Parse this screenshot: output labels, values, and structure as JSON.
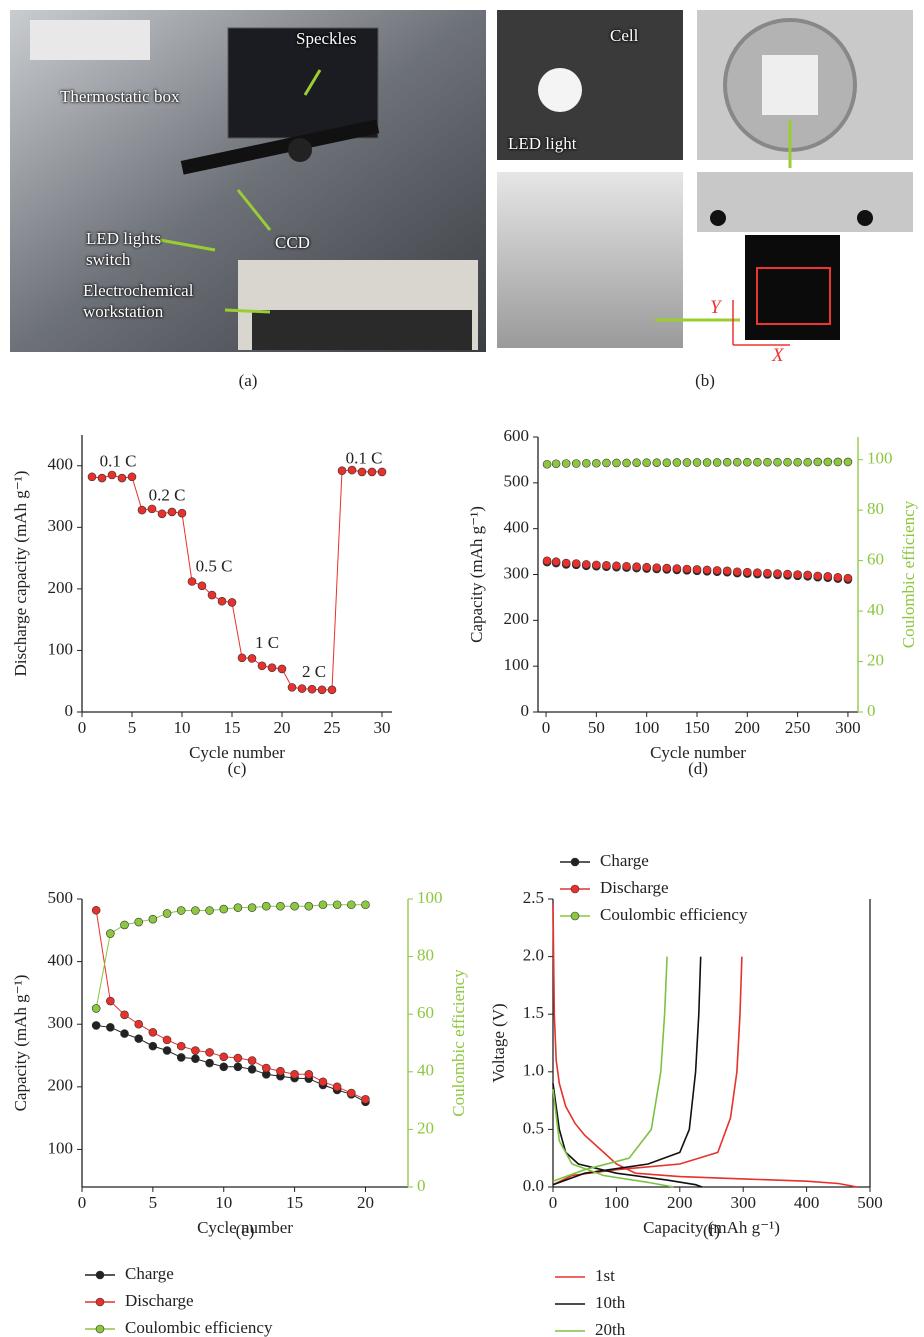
{
  "photos": [
    {
      "caption": "(a)",
      "labels": [
        "Thermostatic box",
        "Speckles",
        "LED lights switch",
        "CCD",
        "Electrochemical workstation"
      ]
    },
    {
      "caption": "(b)",
      "labels": [
        "Cell",
        "LED light",
        "Y",
        "X"
      ]
    }
  ],
  "chart_data": [
    {
      "type": "line",
      "markers": true,
      "caption": "(c)",
      "xlabel": "Cycle number",
      "ylabel": "Discharge capacity (mAh g⁻¹)",
      "x": [
        1,
        2,
        3,
        4,
        5,
        6,
        7,
        8,
        9,
        10,
        11,
        12,
        13,
        14,
        15,
        16,
        17,
        18,
        19,
        20,
        21,
        22,
        23,
        24,
        25,
        26,
        27,
        28,
        29,
        30
      ],
      "values": [
        382,
        380,
        385,
        380,
        382,
        328,
        330,
        322,
        325,
        323,
        212,
        205,
        190,
        180,
        178,
        88,
        87,
        75,
        72,
        70,
        40,
        38,
        37,
        36,
        36,
        392,
        393,
        390,
        390,
        390
      ],
      "color": "#e8302c",
      "annotations": [
        "0.1 C",
        "0.2 C",
        "0.5 C",
        "1 C",
        "2 C",
        "0.1 C"
      ],
      "xlim": [
        0,
        31
      ],
      "xticks": [
        0,
        5,
        10,
        15,
        20,
        25,
        30
      ],
      "ylim": [
        0,
        450
      ],
      "yticks": [
        0,
        100,
        200,
        300,
        400
      ]
    },
    {
      "type": "scatter",
      "caption": "(d)",
      "xlabel": "Cycle number",
      "ylabel": "Capacity (mAh g⁻¹)",
      "y2label": "Coulombic efficiency",
      "x": [
        1,
        10,
        20,
        30,
        40,
        50,
        60,
        70,
        80,
        90,
        100,
        110,
        120,
        130,
        140,
        150,
        160,
        170,
        180,
        190,
        200,
        210,
        220,
        230,
        240,
        250,
        260,
        270,
        280,
        290,
        300
      ],
      "series": [
        {
          "name": "Charge",
          "color": "#222222",
          "values": [
            327,
            325,
            322,
            321,
            319,
            318,
            317,
            316,
            315,
            314,
            313,
            312,
            311,
            310,
            309,
            308,
            307,
            306,
            305,
            303,
            302,
            301,
            300,
            299,
            298,
            297,
            296,
            294,
            293,
            291,
            289
          ]
        },
        {
          "name": "Discharge",
          "color": "#e8302c",
          "values": [
            330,
            328,
            325,
            324,
            322,
            321,
            320,
            319,
            318,
            317,
            316,
            315,
            314,
            313,
            312,
            311,
            310,
            309,
            308,
            306,
            305,
            304,
            303,
            302,
            301,
            300,
            299,
            297,
            296,
            294,
            292
          ]
        },
        {
          "name": "Coulombic efficiency",
          "color": "#8dc63f",
          "axis": "y2",
          "values": [
            98.2,
            98.4,
            98.5,
            98.5,
            98.6,
            98.6,
            98.7,
            98.7,
            98.7,
            98.8,
            98.8,
            98.8,
            98.8,
            98.9,
            98.9,
            98.9,
            98.9,
            98.9,
            99,
            99,
            99,
            99,
            99,
            99,
            99,
            99,
            99,
            99.1,
            99.1,
            99.1,
            99.1
          ]
        }
      ],
      "xlim": [
        -8,
        310
      ],
      "xticks": [
        0,
        50,
        100,
        150,
        200,
        250,
        300
      ],
      "ylim": [
        0,
        600
      ],
      "yticks": [
        0,
        100,
        200,
        300,
        400,
        500,
        600
      ],
      "y2lim": [
        0,
        109
      ],
      "y2ticks": [
        0,
        20,
        40,
        60,
        80,
        100
      ]
    },
    {
      "type": "line",
      "markers": true,
      "caption": "(e)",
      "xlabel": "Cycle number",
      "ylabel": "Capacity (mAh g⁻¹)",
      "y2label": "Coulombic efficiency",
      "x": [
        1,
        2,
        3,
        4,
        5,
        6,
        7,
        8,
        9,
        10,
        11,
        12,
        13,
        14,
        15,
        16,
        17,
        18,
        19,
        20
      ],
      "series": [
        {
          "name": "Charge",
          "color": "#222222",
          "values": [
            298,
            295,
            285,
            277,
            265,
            258,
            247,
            245,
            238,
            232,
            232,
            228,
            220,
            217,
            214,
            213,
            203,
            195,
            188,
            176
          ]
        },
        {
          "name": "Discharge",
          "color": "#e8302c",
          "values": [
            482,
            337,
            315,
            300,
            287,
            275,
            265,
            258,
            255,
            248,
            246,
            242,
            230,
            225,
            220,
            220,
            208,
            200,
            190,
            180
          ]
        },
        {
          "name": "Coulombic efficiency",
          "color": "#8dc63f",
          "axis": "y2",
          "values": [
            62,
            88,
            91,
            92,
            93,
            95,
            96,
            96,
            96,
            96.5,
            97,
            97,
            97.5,
            97.5,
            97.5,
            97.5,
            98,
            98,
            98,
            98
          ]
        }
      ],
      "xlim": [
        0,
        23
      ],
      "xticks": [
        0,
        5,
        10,
        15,
        20
      ],
      "ylim": [
        40,
        500
      ],
      "yticks": [
        100,
        200,
        300,
        400,
        500
      ],
      "y2lim": [
        0,
        100
      ],
      "y2ticks": [
        0,
        20,
        40,
        60,
        80,
        100
      ]
    },
    {
      "type": "line",
      "caption": "(f)",
      "xlabel": "Capacity (mAh g⁻¹)",
      "ylabel": "Voltage (V)",
      "series": [
        {
          "name": "1st",
          "color": "#e8302c",
          "x": [
            0,
            2,
            5,
            10,
            20,
            35,
            50,
            80,
            100,
            130,
            200,
            300,
            400,
            450,
            480,
            null,
            0,
            30,
            100,
            200,
            260,
            280,
            290,
            295,
            298
          ],
          "values": [
            2.45,
            1.5,
            1.1,
            0.9,
            0.7,
            0.55,
            0.45,
            0.3,
            0.2,
            0.12,
            0.09,
            0.07,
            0.05,
            0.03,
            0,
            null,
            0.02,
            0.1,
            0.15,
            0.2,
            0.3,
            0.6,
            1,
            1.5,
            2
          ]
        },
        {
          "name": "10th",
          "color": "#111111",
          "x": [
            0,
            10,
            20,
            40,
            100,
            180,
            225,
            235,
            null,
            0,
            50,
            150,
            200,
            215,
            225,
            230,
            233
          ],
          "values": [
            0.9,
            0.5,
            0.3,
            0.2,
            0.12,
            0.06,
            0.02,
            0,
            null,
            0.02,
            0.12,
            0.2,
            0.3,
            0.5,
            1,
            1.5,
            2
          ]
        },
        {
          "name": "20th",
          "color": "#7cc242",
          "x": [
            0,
            10,
            30,
            80,
            150,
            190,
            null,
            0,
            50,
            120,
            155,
            170,
            176,
            180
          ],
          "values": [
            0.85,
            0.4,
            0.2,
            0.1,
            0.04,
            0,
            null,
            0.05,
            0.15,
            0.25,
            0.5,
            1,
            1.5,
            2
          ]
        }
      ],
      "xlim": [
        0,
        500
      ],
      "xticks": [
        0,
        100,
        200,
        300,
        400,
        500
      ],
      "ylim": [
        0,
        2.5
      ],
      "yticks": [
        {
          "value": 0,
          "label": "0.0"
        },
        0.5,
        {
          "value": 1,
          "label": "1.0"
        },
        1.5,
        {
          "value": 2,
          "label": "2.0"
        },
        2.5
      ]
    }
  ]
}
